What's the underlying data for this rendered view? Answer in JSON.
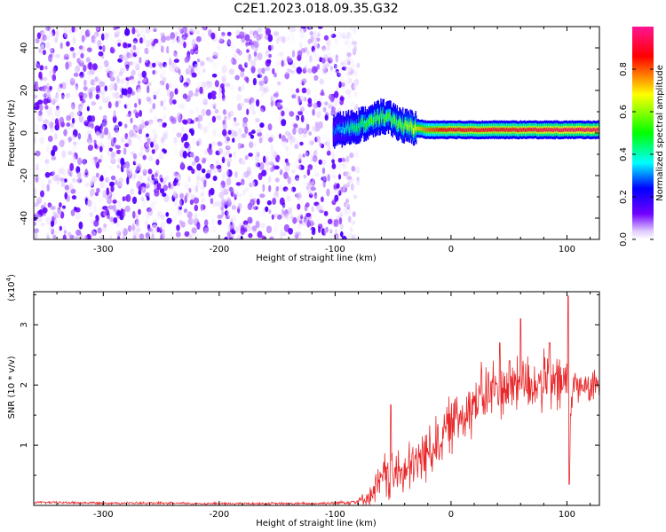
{
  "title": "C2E1.2023.018.09.35.G32",
  "chart_data": [
    {
      "type": "heatmap",
      "xlabel": "Height of straight line (km)",
      "ylabel": "Frequency (Hz)",
      "xlim": [
        -360,
        128
      ],
      "ylim": [
        -50,
        50
      ],
      "x_ticks": [
        -300,
        -200,
        -100,
        0,
        100
      ],
      "x_tick_labels": [
        "-300",
        "-200",
        "-100",
        "0",
        "100"
      ],
      "y_ticks": [
        -40,
        -20,
        0,
        20,
        40
      ],
      "y_tick_labels": [
        "-40",
        "-20",
        "0",
        "20",
        "40"
      ],
      "colorbar": {
        "label": "Normalized spectral amplitude",
        "range": [
          0,
          1
        ],
        "ticks": [
          0.0,
          0.2,
          0.4,
          0.6,
          0.8
        ],
        "tick_labels": [
          "0.0",
          "0.2",
          "0.4",
          "0.6",
          "0.8"
        ],
        "colors": [
          "#ffffff",
          "#e0c8ff",
          "#7000ff",
          "#0000ff",
          "#00ffff",
          "#00ff00",
          "#ffff00",
          "#ff0000",
          "#ff1493"
        ]
      },
      "noise_region": {
        "x_range": [
          -360,
          -88
        ],
        "freq_range": [
          -50,
          50
        ],
        "amplitude": [
          0.0,
          0.25
        ]
      },
      "signal_ridge": [
        {
          "x": -100,
          "freq": 1,
          "amplitude": 0.3
        },
        {
          "x": -85,
          "freq": 3,
          "amplitude": 0.45
        },
        {
          "x": -70,
          "freq": 5,
          "amplitude": 0.55
        },
        {
          "x": -60,
          "freq": 8,
          "amplitude": 0.55
        },
        {
          "x": -50,
          "freq": 6,
          "amplitude": 0.55
        },
        {
          "x": -40,
          "freq": 3,
          "amplitude": 0.6
        },
        {
          "x": -20,
          "freq": 1.5,
          "amplitude": 0.8
        },
        {
          "x": 0,
          "freq": 1.5,
          "amplitude": 0.9
        },
        {
          "x": 50,
          "freq": 1.5,
          "amplitude": 0.9
        },
        {
          "x": 100,
          "freq": 1.5,
          "amplitude": 0.95
        },
        {
          "x": 128,
          "freq": 1.5,
          "amplitude": 0.95
        }
      ]
    },
    {
      "type": "line",
      "xlabel": "Height of straight line (km)",
      "ylabel": "SNR (10 * v/v)",
      "y_scale_label": "(x10",
      "y_scale_exp": "4",
      "xlim": [
        -360,
        128
      ],
      "ylim": [
        0,
        3.55
      ],
      "x_ticks": [
        -300,
        -200,
        -100,
        0,
        100
      ],
      "x_tick_labels": [
        "-300",
        "-200",
        "-100",
        "0",
        "100"
      ],
      "y_ticks": [
        1,
        2,
        3
      ],
      "y_tick_labels": [
        "1",
        "2",
        "3"
      ],
      "series": [
        {
          "color": "#e8282a",
          "x": [
            -360,
            -300,
            -200,
            -120,
            -100,
            -80,
            -70,
            -60,
            -55,
            -50,
            -45,
            -40,
            -30,
            -20,
            -10,
            0,
            10,
            20,
            30,
            40,
            50,
            60,
            70,
            80,
            90,
            95,
            100,
            102,
            105,
            110,
            120,
            128
          ],
          "y": [
            0.05,
            0.04,
            0.03,
            0.03,
            0.04,
            0.07,
            0.15,
            0.4,
            0.55,
            0.45,
            0.6,
            0.5,
            0.7,
            0.9,
            1.1,
            1.35,
            1.55,
            1.7,
            1.85,
            1.95,
            2.0,
            2.05,
            2.0,
            2.05,
            2.0,
            2.0,
            2.1,
            1.0,
            2.0,
            2.0,
            1.95,
            2.0
          ],
          "noise": [
            0.02,
            0.02,
            0.02,
            0.02,
            0.03,
            0.05,
            0.15,
            0.35,
            0.45,
            0.45,
            0.4,
            0.4,
            0.45,
            0.45,
            0.45,
            0.45,
            0.5,
            0.5,
            0.5,
            0.5,
            0.55,
            0.55,
            0.5,
            0.45,
            0.5,
            0.45,
            0.5,
            0.6,
            0.3,
            0.25,
            0.25,
            0.25
          ],
          "peaks": [
            {
              "x": -52,
              "y": 1.67
            },
            {
              "x": 60,
              "y": 3.1
            },
            {
              "x": 101,
              "y": 3.48
            },
            {
              "x": 102,
              "y": 0.35
            },
            {
              "x": 85,
              "y": 2.7
            },
            {
              "x": 42,
              "y": 2.7
            }
          ]
        }
      ]
    }
  ]
}
